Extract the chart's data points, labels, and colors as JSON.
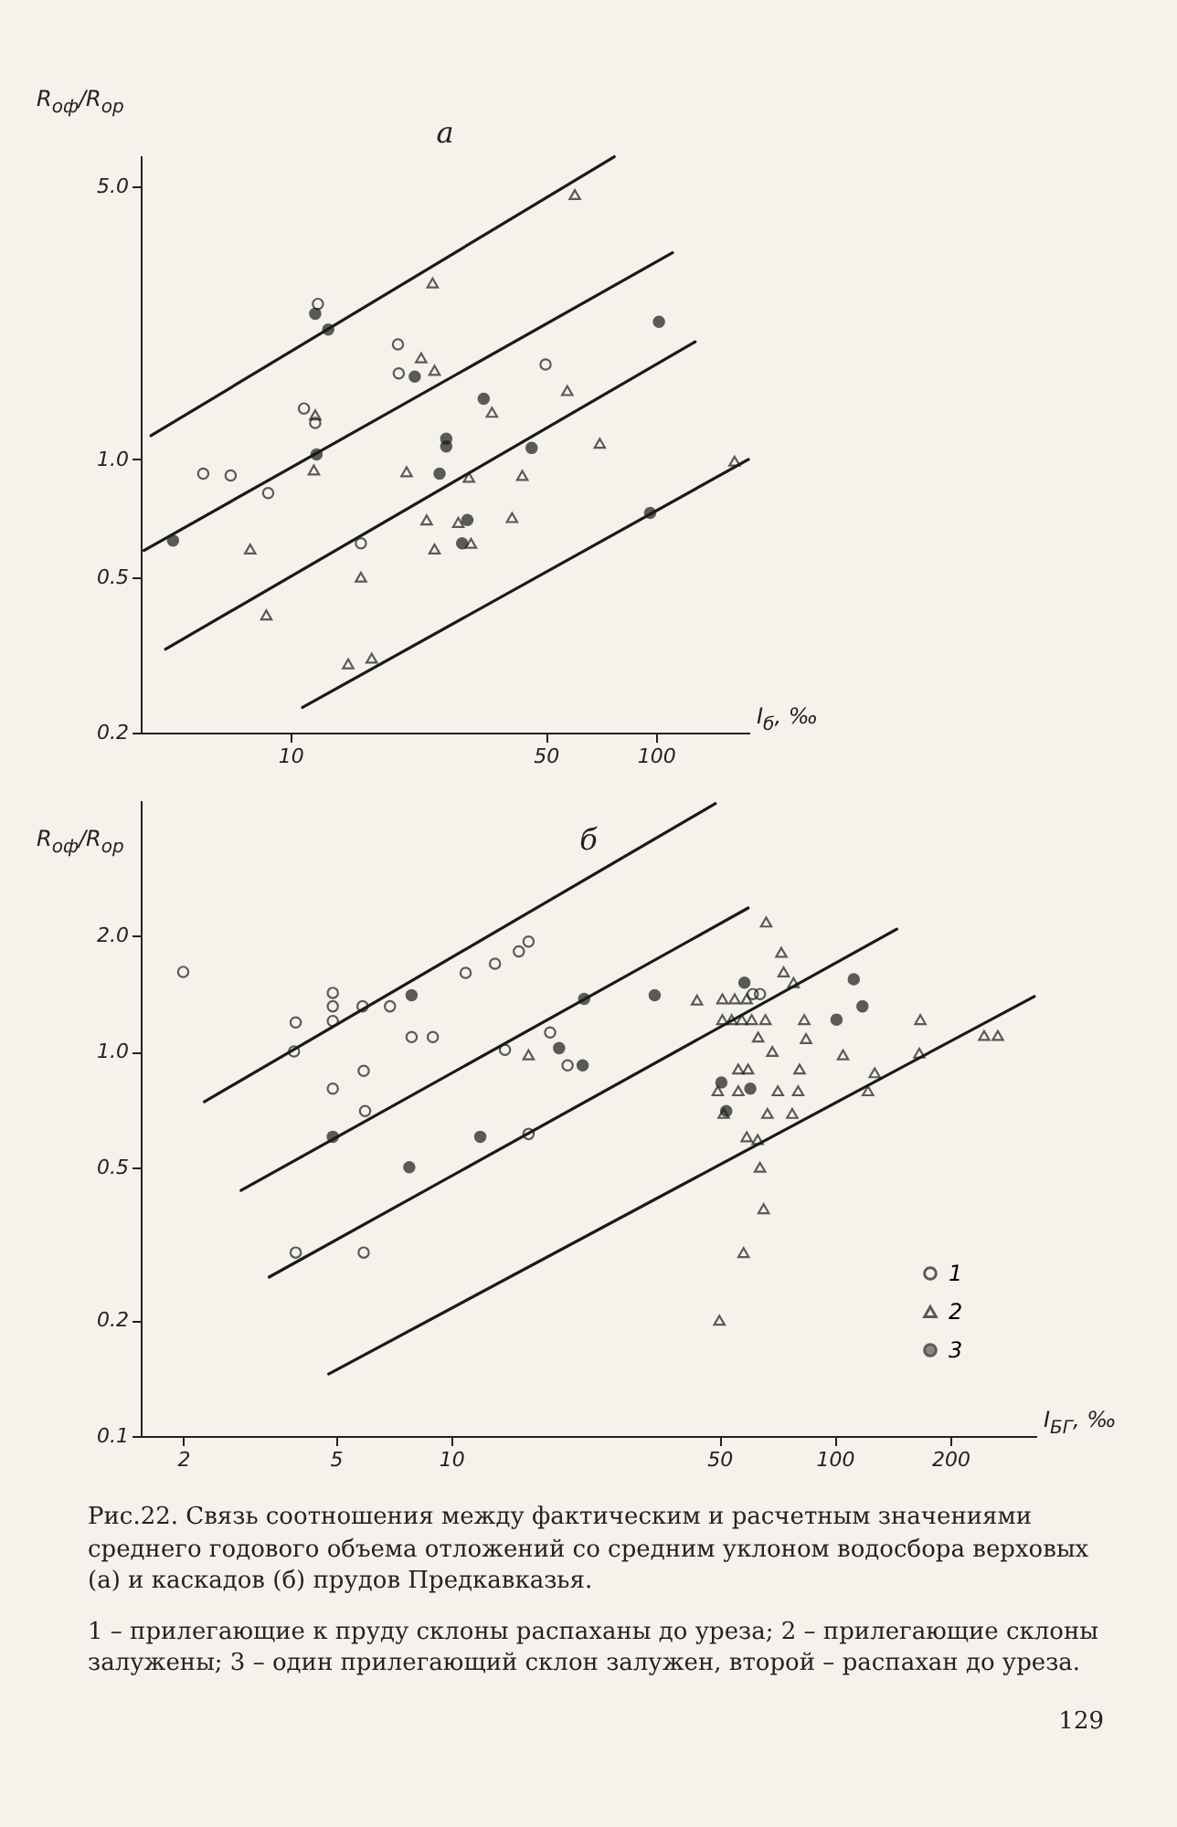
{
  "chart_data": [
    {
      "type": "scatter",
      "title": "а",
      "ylabel": "R$_{оф}$/R$_{ор}$",
      "xlabel": "I$_{б}$, ‰",
      "log": "xy",
      "grid": false,
      "legend": false,
      "xlim": [
        3.9,
        180
      ],
      "xticks": [
        10,
        50,
        100
      ],
      "ylim": [
        0.2,
        6.0
      ],
      "yticks": [
        0.2,
        0.5,
        {
          "value": 1,
          "label": "1.0"
        },
        {
          "value": 5,
          "label": "5.0"
        }
      ],
      "series": [
        {
          "color": "#1a1a1a",
          "marker": "circle",
          "x": [
            11.9,
            19.7,
            19.8,
            49.9,
            10.9,
            11.7,
            5.78,
            6.87,
            8.7,
            15.6
          ],
          "values": [
            2.5,
            1.97,
            1.66,
            1.75,
            1.35,
            1.24,
            0.92,
            0.91,
            0.82,
            0.61
          ]
        },
        {
          "color": "#1a1a1a",
          "marker": "triangle",
          "x": [
            60,
            24.5,
            22.8,
            24.8,
            35.6,
            57.2,
            11.7,
            11.6,
            20.8,
            30.8,
            43.1,
            70.2,
            164,
            7.77,
            23.6,
            28.8,
            40.4,
            24.8,
            31.2,
            15.6,
            8.6,
            14.4,
            16.7
          ],
          "values": [
            4.76,
            2.83,
            1.82,
            1.69,
            1.32,
            1.5,
            1.3,
            0.94,
            0.93,
            0.9,
            0.91,
            1.1,
            0.99,
            0.59,
            0.7,
            0.69,
            0.71,
            0.59,
            0.61,
            0.5,
            0.4,
            0.3,
            0.31
          ]
        },
        {
          "color": "#1a1a1a",
          "marker": "circle",
          "x": [
            11.7,
            12.7,
            21.9,
            33.8,
            26.7,
            26.7,
            45.7,
            11.8,
            25.6,
            30.5,
            29.5,
            101.9,
            96.4,
            4.78
          ],
          "values": [
            2.36,
            2.15,
            1.63,
            1.43,
            1.13,
            1.08,
            1.07,
            1.03,
            0.92,
            0.7,
            0.61,
            2.25,
            0.73,
            0.62
          ]
        },
        {
          "type": "line",
          "color": "#1a1a1a",
          "x": [
            4.16,
            76.9
          ],
          "values": [
            1.15,
            5.95
          ]
        },
        {
          "type": "line",
          "color": "#1a1a1a",
          "x": [
            3.98,
            111
          ],
          "values": [
            0.585,
            3.38
          ]
        },
        {
          "type": "line",
          "color": "#1a1a1a",
          "x": [
            4.56,
            128
          ],
          "values": [
            0.327,
            2.0
          ]
        },
        {
          "type": "line",
          "color": "#1a1a1a",
          "x": [
            10.8,
            179
          ],
          "values": [
            0.232,
            1.0
          ]
        }
      ]
    },
    {
      "type": "scatter",
      "title": "б",
      "ylabel": "R$_{оф}$/R$_{ор}$",
      "xlabel": "I$_{БГ}$, ‰",
      "log": "xy",
      "grid": false,
      "legend": "bottom right",
      "xlim": [
        1.55,
        335
      ],
      "xticks": [
        2,
        5,
        10,
        50,
        100,
        200
      ],
      "ylim": [
        0.1,
        4.5
      ],
      "yticks": [
        0.1,
        0.2,
        0.5,
        {
          "value": 1,
          "label": "1.0"
        },
        {
          "value": 2,
          "label": "2.0"
        }
      ],
      "annotations": [
        "Рис.22. Связь соотношения между фактическим и расчетным значениями среднего годового объема отложений со средним уклоном водосбора верховых (а) и каскадов (б) прудов Предкавказья.",
        "1 – прилегающие к пруду склоны распаханы до уреза; 2 – прилегающие склоны залужены; 3 – один прилегающий склон залужен, второй – распахан до уреза.",
        "129"
      ],
      "series": [
        {
          "name": "1",
          "color": "#1a1a1a",
          "marker": "circle",
          "x": [
            2,
            3.93,
            3.89,
            4.91,
            4.91,
            4.91,
            5.87,
            6.92,
            4.91,
            5.91,
            5.96,
            3.93,
            5.91,
            7.88,
            8.95,
            10.9,
            13.0,
            15.0,
            15.9,
            13.8,
            18.1,
            20.1,
            15.9,
            61.1,
            63.8
          ],
          "values": [
            1.61,
            1.19,
            1.0,
            1.42,
            1.31,
            1.2,
            1.31,
            1.31,
            0.8,
            0.89,
            0.7,
            0.3,
            0.3,
            1.09,
            1.09,
            1.6,
            1.69,
            1.82,
            1.93,
            1.01,
            1.12,
            0.92,
            0.61,
            1.41,
            1.41
          ]
        },
        {
          "name": "2",
          "color": "#1a1a1a",
          "marker": "triangle",
          "x": [
            15.9,
            66.2,
            72.5,
            73.5,
            78.0,
            43.7,
            50.9,
            54.8,
            58.9,
            50.9,
            53.8,
            57.2,
            60.7,
            65.9,
            83.2,
            63.1,
            84.1,
            167,
            245,
            266,
            68.7,
            105,
            166,
            56.0,
            59.4,
            80.9,
            127,
            49.5,
            56.0,
            71.0,
            80.2,
            122,
            51.3,
            66.7,
            77.4,
            58.9,
            62.9,
            63.8,
            65.2,
            57.8,
            50.0
          ],
          "values": [
            0.98,
            2.17,
            1.81,
            1.61,
            1.51,
            1.36,
            1.37,
            1.37,
            1.37,
            1.21,
            1.21,
            1.21,
            1.21,
            1.21,
            1.21,
            1.09,
            1.08,
            1.21,
            1.1,
            1.1,
            1.0,
            0.98,
            0.99,
            0.9,
            0.9,
            0.9,
            0.88,
            0.79,
            0.79,
            0.79,
            0.79,
            0.79,
            0.69,
            0.69,
            0.69,
            0.6,
            0.59,
            0.5,
            0.39,
            0.3,
            0.2
          ]
        },
        {
          "name": "3",
          "color": "#1a1a1a",
          "marker": "circle",
          "x": [
            7.88,
            4.91,
            7.77,
            11.9,
            19.1,
            22.0,
            22.2,
            33.9,
            58.1,
            112,
            118,
            101,
            50.6,
            60.2,
            52.1
          ],
          "values": [
            1.4,
            0.6,
            0.5,
            0.6,
            1.02,
            0.92,
            1.37,
            1.4,
            1.51,
            1.54,
            1.31,
            1.21,
            0.83,
            0.8,
            0.7
          ]
        },
        {
          "type": "line",
          "color": "#1a1a1a",
          "x": [
            2.27,
            48.8
          ],
          "values": [
            0.74,
            4.41
          ]
        },
        {
          "type": "line",
          "color": "#1a1a1a",
          "x": [
            2.83,
            59.4
          ],
          "values": [
            0.435,
            2.36
          ]
        },
        {
          "type": "line",
          "color": "#1a1a1a",
          "x": [
            3.35,
            145
          ],
          "values": [
            0.259,
            2.08
          ]
        },
        {
          "type": "line",
          "color": "#1a1a1a",
          "x": [
            4.79,
            331
          ],
          "values": [
            0.145,
            1.39
          ]
        }
      ]
    }
  ]
}
